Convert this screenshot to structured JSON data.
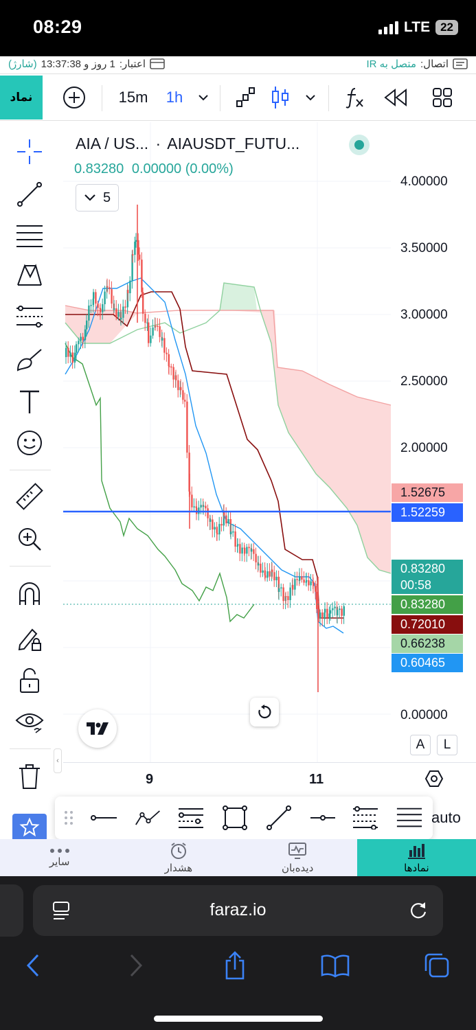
{
  "status_bar": {
    "time": "08:29",
    "network": "LTE",
    "battery": "22"
  },
  "info_row": {
    "connection_label": "اتصال:",
    "connection_status": "متصل به IR",
    "account_label": "اعتبار:",
    "account_value": "1 روز و 13:37:38",
    "account_charge": "(شارژ)"
  },
  "toolbar": {
    "symbol_button": "نماد",
    "interval_15m": "15m",
    "interval_1h": "1h"
  },
  "legend": {
    "symbol": "AIA / US...",
    "separator": "·",
    "exchange_symbol": "AIAUSDT_FUTU...",
    "last_price": "0.83280",
    "change": "0.00000 (0.00%)",
    "indicator_count": "5"
  },
  "price_axis": {
    "labels": [
      "4.00000",
      "3.50000",
      "3.00000",
      "2.50000",
      "2.00000",
      "0.00000"
    ]
  },
  "price_tags": {
    "cloud_top": "1.52675",
    "horizontal_line": "1.52259",
    "last_price": "0.83280",
    "countdown": "00:58",
    "close": "0.83280",
    "baseline": "0.72010",
    "lagging": "0.66238",
    "conversion": "0.60465"
  },
  "time_axis": {
    "labels": [
      "9",
      "11"
    ]
  },
  "scale_buttons": {
    "auto_mode": "A",
    "log_mode": "L"
  },
  "floating_toolbar": {
    "auto_label": "auto"
  },
  "bottom_nav": {
    "items": [
      {
        "label": "سایر",
        "icon": "more-dots-icon"
      },
      {
        "label": "هشدار",
        "icon": "alarm-clock-icon"
      },
      {
        "label": "دیده‌بان",
        "icon": "monitor-icon"
      },
      {
        "label": "نمادها",
        "icon": "chart-bars-icon"
      }
    ]
  },
  "browser": {
    "url": "faraz.io"
  },
  "colors": {
    "accent_teal": "#26c6b8",
    "up": "#26a69a",
    "down": "#ef5350",
    "baseline": "#880e0e",
    "conversion": "#2196f3",
    "lagging": "#43a047",
    "hline": "#2962ff",
    "cloud": "#fcdada"
  }
}
